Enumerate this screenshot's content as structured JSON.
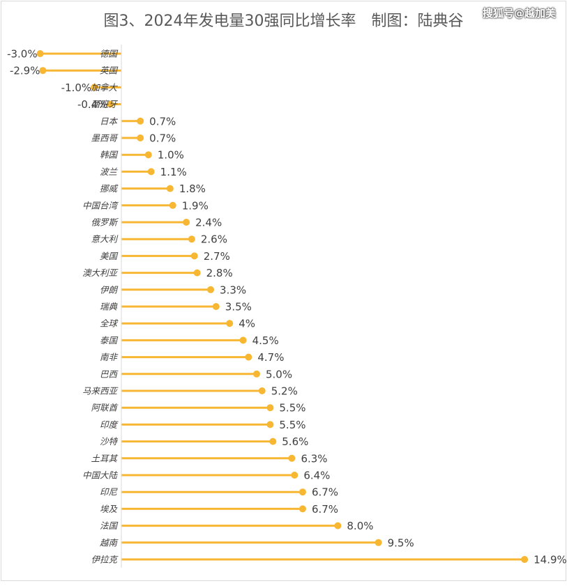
{
  "title": "图3、2024年发电量30强同比增长率　制图：陆典谷",
  "watermark": "搜狐号@越加美",
  "chart_data": {
    "type": "bar",
    "orientation": "horizontal",
    "style": "lollipop",
    "unit": "%",
    "color": "#F7B733",
    "axis_color": "#d9d9d9",
    "xlim": [
      -3.0,
      14.9
    ],
    "grid": false,
    "legend": "none",
    "categories": [
      "德国",
      "英国",
      "加拿大",
      "西班牙",
      "日本",
      "墨西哥",
      "韩国",
      "波兰",
      "挪威",
      "中国台湾",
      "俄罗斯",
      "意大利",
      "美国",
      "澳大利亚",
      "伊朗",
      "瑞典",
      "全球",
      "泰国",
      "南非",
      "巴西",
      "马来西亚",
      "阿联酋",
      "印度",
      "沙特",
      "土耳其",
      "中国大陆",
      "印尼",
      "埃及",
      "法国",
      "越南",
      "伊拉克"
    ],
    "values": [
      -3.0,
      -2.9,
      -1.0,
      -0.4,
      0.7,
      0.7,
      1.0,
      1.1,
      1.8,
      1.9,
      2.4,
      2.6,
      2.7,
      2.8,
      3.3,
      3.5,
      4,
      4.5,
      4.7,
      5.0,
      5.2,
      5.5,
      5.5,
      5.6,
      6.3,
      6.4,
      6.7,
      6.7,
      8.0,
      9.5,
      14.9
    ],
    "labels": [
      "-3.0%",
      "-2.9%",
      "-1.0%",
      "-0.4%",
      "0.7%",
      "0.7%",
      "1.0%",
      "1.1%",
      "1.8%",
      "1.9%",
      "2.4%",
      "2.6%",
      "2.7%",
      "2.8%",
      "3.3%",
      "3.5%",
      "4%",
      "4.5%",
      "4.7%",
      "5.0%",
      "5.2%",
      "5.5%",
      "5.5%",
      "5.6%",
      "6.3%",
      "6.4%",
      "6.7%",
      "6.7%",
      "8.0%",
      "9.5%",
      "14.9%"
    ]
  }
}
